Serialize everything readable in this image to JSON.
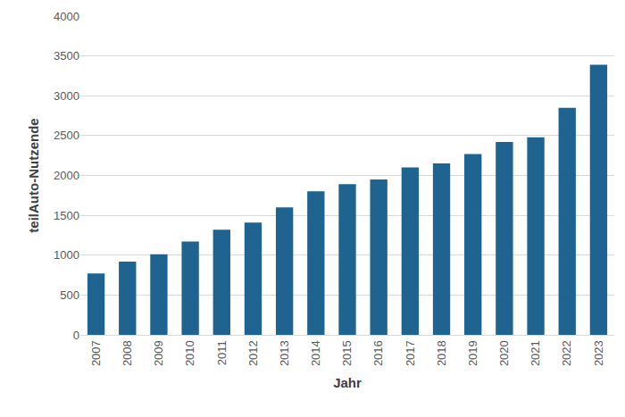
{
  "chart_data": {
    "type": "bar",
    "x_label": "Jahr",
    "y_label": "teilAuto-Nutzende",
    "categories": [
      "2007",
      "2008",
      "2009",
      "2010",
      "2011",
      "2012",
      "2013",
      "2014",
      "2015",
      "2016",
      "2017",
      "2018",
      "2019",
      "2020",
      "2021",
      "2022",
      "2023"
    ],
    "values": [
      770,
      920,
      1010,
      1170,
      1320,
      1410,
      1600,
      1800,
      1890,
      1950,
      2100,
      2150,
      2270,
      2420,
      2480,
      2850,
      3390
    ],
    "color": "#1f6391",
    "ylim": [
      0,
      4000
    ],
    "yticks": [
      0,
      500,
      1000,
      1500,
      2000,
      2500,
      3000,
      3500,
      4000
    ],
    "grid": true
  }
}
